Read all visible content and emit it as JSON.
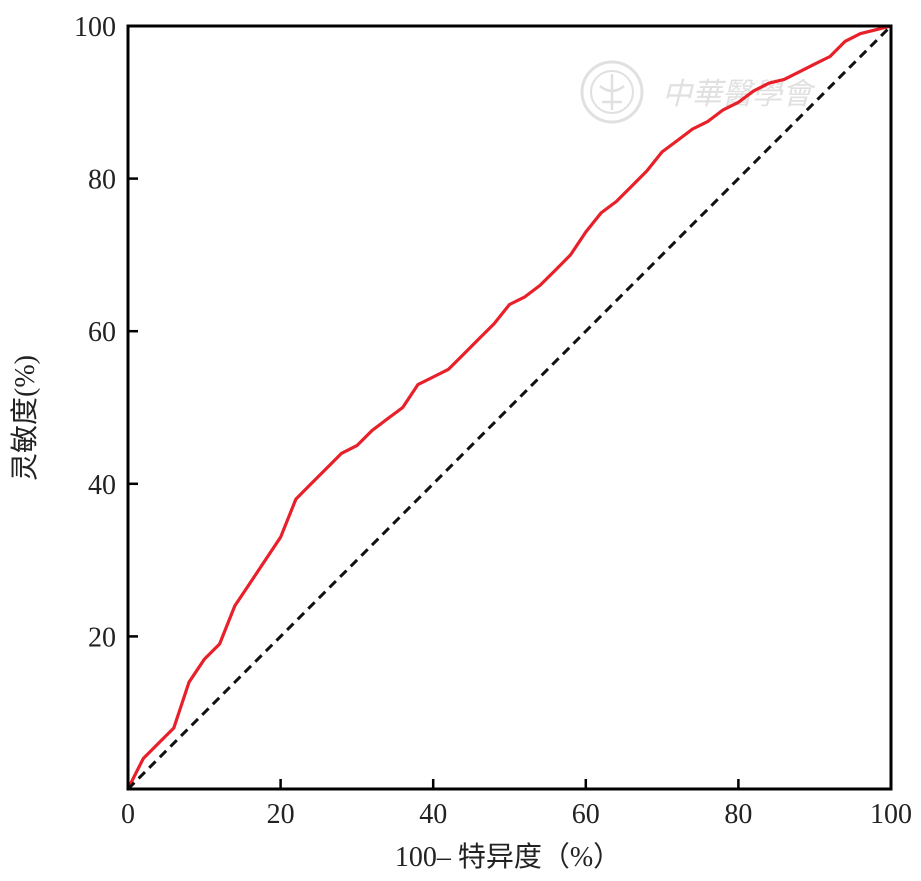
{
  "chart_data": {
    "type": "line",
    "title": "",
    "xlabel": "100– 特异度（%）",
    "ylabel": "灵敏度(%)",
    "xlim": [
      0,
      100
    ],
    "ylim": [
      0,
      100
    ],
    "x_ticks": [
      0,
      20,
      40,
      60,
      80,
      100
    ],
    "x_tick_labels": [
      "0",
      "20",
      "40",
      "60",
      "80",
      "100"
    ],
    "y_ticks": [
      20,
      40,
      60,
      80,
      100
    ],
    "y_tick_labels": [
      "20",
      "40",
      "60",
      "80",
      "100"
    ],
    "grid": false,
    "legend": "none",
    "series": [
      {
        "role": "roc-curve",
        "color": "#e8202a",
        "style": "solid",
        "x": [
          0,
          1,
          2,
          4,
          6,
          7,
          8,
          10,
          12,
          14,
          16,
          18,
          20,
          22,
          24,
          26,
          28,
          30,
          32,
          34,
          36,
          38,
          40,
          42,
          44,
          46,
          48,
          50,
          52,
          54,
          56,
          58,
          60,
          62,
          64,
          66,
          68,
          70,
          72,
          74,
          76,
          78,
          80,
          82,
          84,
          86,
          88,
          90,
          92,
          94,
          96,
          98,
          100
        ],
        "y": [
          0,
          2,
          4,
          6,
          8,
          11,
          14,
          17,
          19,
          24,
          27,
          30,
          33,
          38,
          40,
          42,
          44,
          45,
          47,
          48.5,
          50,
          53,
          54,
          55,
          57,
          59,
          61,
          63.5,
          64.5,
          66,
          68,
          70,
          73,
          75.5,
          77,
          79,
          81,
          83.5,
          85,
          86.5,
          87.5,
          89,
          90,
          91.5,
          92.5,
          93,
          94,
          95,
          96,
          98,
          99,
          99.5,
          100
        ]
      },
      {
        "role": "reference-diagonal",
        "color": "#111111",
        "style": "dashed",
        "x": [
          0,
          100
        ],
        "y": [
          0,
          100
        ]
      }
    ]
  },
  "watermark": {
    "text": "中華醫學會",
    "color": "#dddddd"
  }
}
